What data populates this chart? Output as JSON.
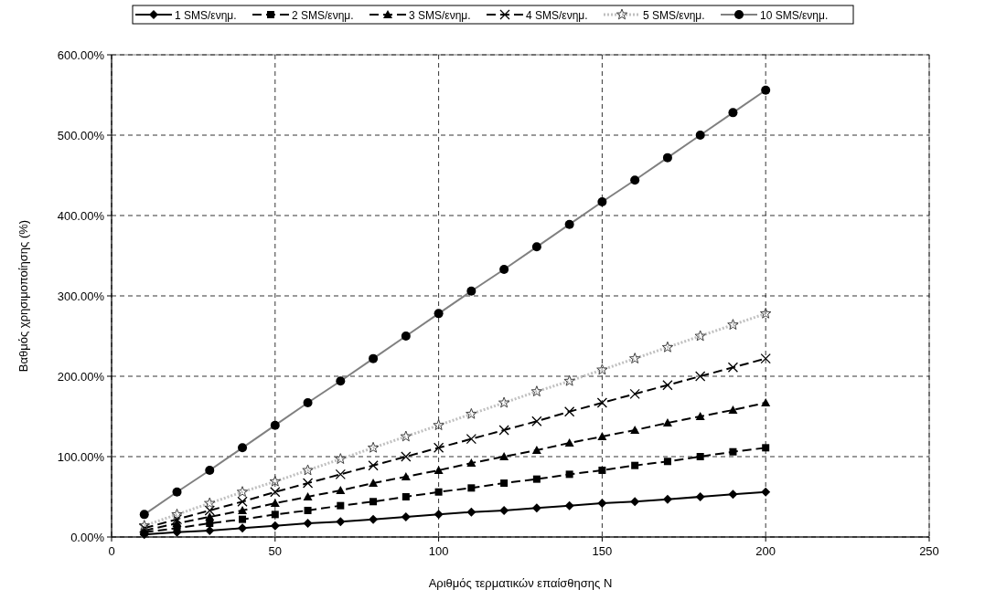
{
  "chart_data": {
    "type": "line",
    "xlabel": "Αριθμός τερματικών επαίσθησης N",
    "ylabel": "Βαθμός χρησιμοποίησης (%)",
    "x": [
      10,
      20,
      30,
      40,
      50,
      60,
      70,
      80,
      90,
      100,
      110,
      120,
      130,
      140,
      150,
      160,
      170,
      180,
      190,
      200
    ],
    "xlim": [
      0,
      250
    ],
    "xticks": [
      0,
      50,
      100,
      150,
      200,
      250
    ],
    "ylim": [
      0,
      600
    ],
    "yticks": [
      {
        "value": 0,
        "label": "0.00%"
      },
      {
        "value": 100,
        "label": "100.00%"
      },
      {
        "value": 200,
        "label": "200.00%"
      },
      {
        "value": 300,
        "label": "300.00%"
      },
      {
        "value": 400,
        "label": "400.00%"
      },
      {
        "value": 500,
        "label": "500.00%"
      },
      {
        "value": 600,
        "label": "600.00%"
      }
    ],
    "grid": true,
    "legend": "top",
    "series": [
      {
        "name": "1 SMS/ενημ.",
        "color": "#000000",
        "marker": "diamond",
        "line_style": "solid",
        "values": [
          3,
          6,
          8,
          11,
          14,
          17,
          19,
          22,
          25,
          28,
          31,
          33,
          36,
          39,
          42,
          44,
          47,
          50,
          53,
          56
        ]
      },
      {
        "name": "2 SMS/ενημ.",
        "color": "#000000",
        "marker": "square",
        "line_style": "dashed",
        "values": [
          6,
          11,
          17,
          22,
          28,
          33,
          39,
          44,
          50,
          56,
          61,
          67,
          72,
          78,
          83,
          89,
          94,
          100,
          106,
          111
        ]
      },
      {
        "name": "3 SMS/ενημ.",
        "color": "#000000",
        "marker": "triangle",
        "line_style": "dashed",
        "values": [
          8,
          17,
          25,
          33,
          42,
          50,
          58,
          67,
          75,
          83,
          92,
          100,
          108,
          117,
          125,
          133,
          142,
          150,
          158,
          167
        ]
      },
      {
        "name": "4 SMS/ενημ.",
        "color": "#000000",
        "marker": "cross",
        "line_style": "dashed",
        "values": [
          11,
          22,
          33,
          44,
          56,
          67,
          78,
          89,
          100,
          111,
          122,
          133,
          144,
          156,
          167,
          178,
          189,
          200,
          211,
          222
        ]
      },
      {
        "name": "5 SMS/ενημ.",
        "color": "#c0c0c0",
        "marker": "star",
        "line_style": "dotted",
        "values": [
          14,
          28,
          42,
          56,
          69,
          83,
          97,
          111,
          125,
          139,
          153,
          167,
          181,
          194,
          208,
          222,
          236,
          250,
          264,
          278
        ]
      },
      {
        "name": "10 SMS/ενημ.",
        "color": "#808080",
        "marker": "circle",
        "line_style": "solid",
        "values": [
          28,
          56,
          83,
          111,
          139,
          167,
          194,
          222,
          250,
          278,
          306,
          333,
          361,
          389,
          417,
          444,
          472,
          500,
          528,
          556
        ]
      }
    ]
  }
}
